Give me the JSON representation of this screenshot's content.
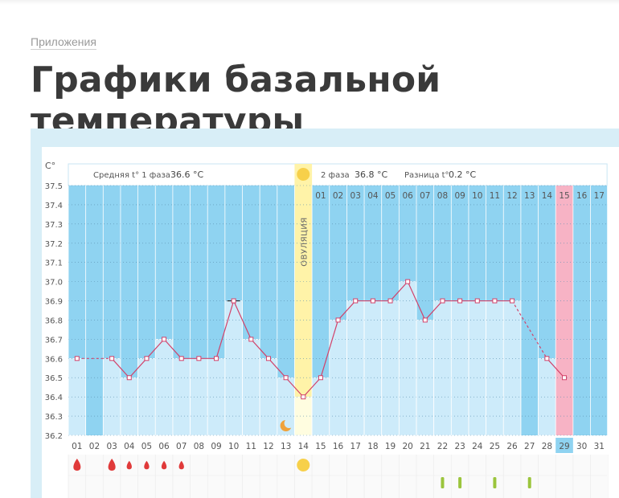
{
  "breadcrumb": "Приложения",
  "title": "Графики базальной температуры",
  "header": {
    "unit": "C°",
    "phase1_label": "Средняя t° 1 фаза",
    "phase1_value": "36.6 °C",
    "phase2_label": "2 фаза",
    "phase2_value": "36.8 °C",
    "diff_label": "Разница t°",
    "diff_value": "0.2 °C"
  },
  "ovulation_label": "ОВУЛЯЦИЯ",
  "colors": {
    "background_blue": "#8fd3f1",
    "column_light": "#cdebfa",
    "ovulation": "#fff3a8",
    "highlight_pink": "#f7b3c5",
    "line": "#d2426a",
    "sun": "#f7d04a",
    "moon": "#f0a23a",
    "drop": "#e03a3a",
    "mark": "#9bc53d"
  },
  "chart_data": {
    "type": "line",
    "y_ticks": [
      "37.5",
      "37.4",
      "37.3",
      "37.2",
      "37.1",
      "37.0",
      "36.9",
      "36.8",
      "36.7",
      "36.6",
      "36.5",
      "36.4",
      "36.3",
      "36.2"
    ],
    "ylim": [
      36.2,
      37.5
    ],
    "cycle_days": [
      "01",
      "02",
      "03",
      "04",
      "05",
      "06",
      "07",
      "08",
      "09",
      "10",
      "11",
      "12",
      "13",
      "14",
      "15",
      "16",
      "17",
      "18",
      "19",
      "20",
      "21",
      "22",
      "23",
      "24",
      "25",
      "26",
      "27",
      "28",
      "29",
      "30",
      "31"
    ],
    "phase2_day_labels": [
      "01",
      "02",
      "03",
      "04",
      "05",
      "06",
      "07",
      "08",
      "09",
      "10",
      "11",
      "12",
      "13",
      "14",
      "15",
      "16",
      "17"
    ],
    "temperatures": [
      36.6,
      null,
      36.6,
      36.5,
      36.6,
      36.7,
      36.6,
      36.6,
      36.6,
      36.9,
      36.7,
      36.6,
      36.5,
      36.4,
      36.5,
      36.8,
      36.9,
      36.9,
      36.9,
      37.0,
      36.8,
      36.9,
      36.9,
      36.9,
      36.9,
      36.9,
      null,
      36.6,
      36.5,
      null,
      null
    ],
    "ovulation_day": 14,
    "highlighted_day": 29,
    "moon_day": 13,
    "sun_days": [
      14
    ],
    "drop_days": [
      1,
      3,
      4,
      5,
      6,
      7
    ],
    "large_drop_days": [
      1,
      3
    ],
    "mark_days": [
      22,
      23,
      25,
      27
    ]
  }
}
